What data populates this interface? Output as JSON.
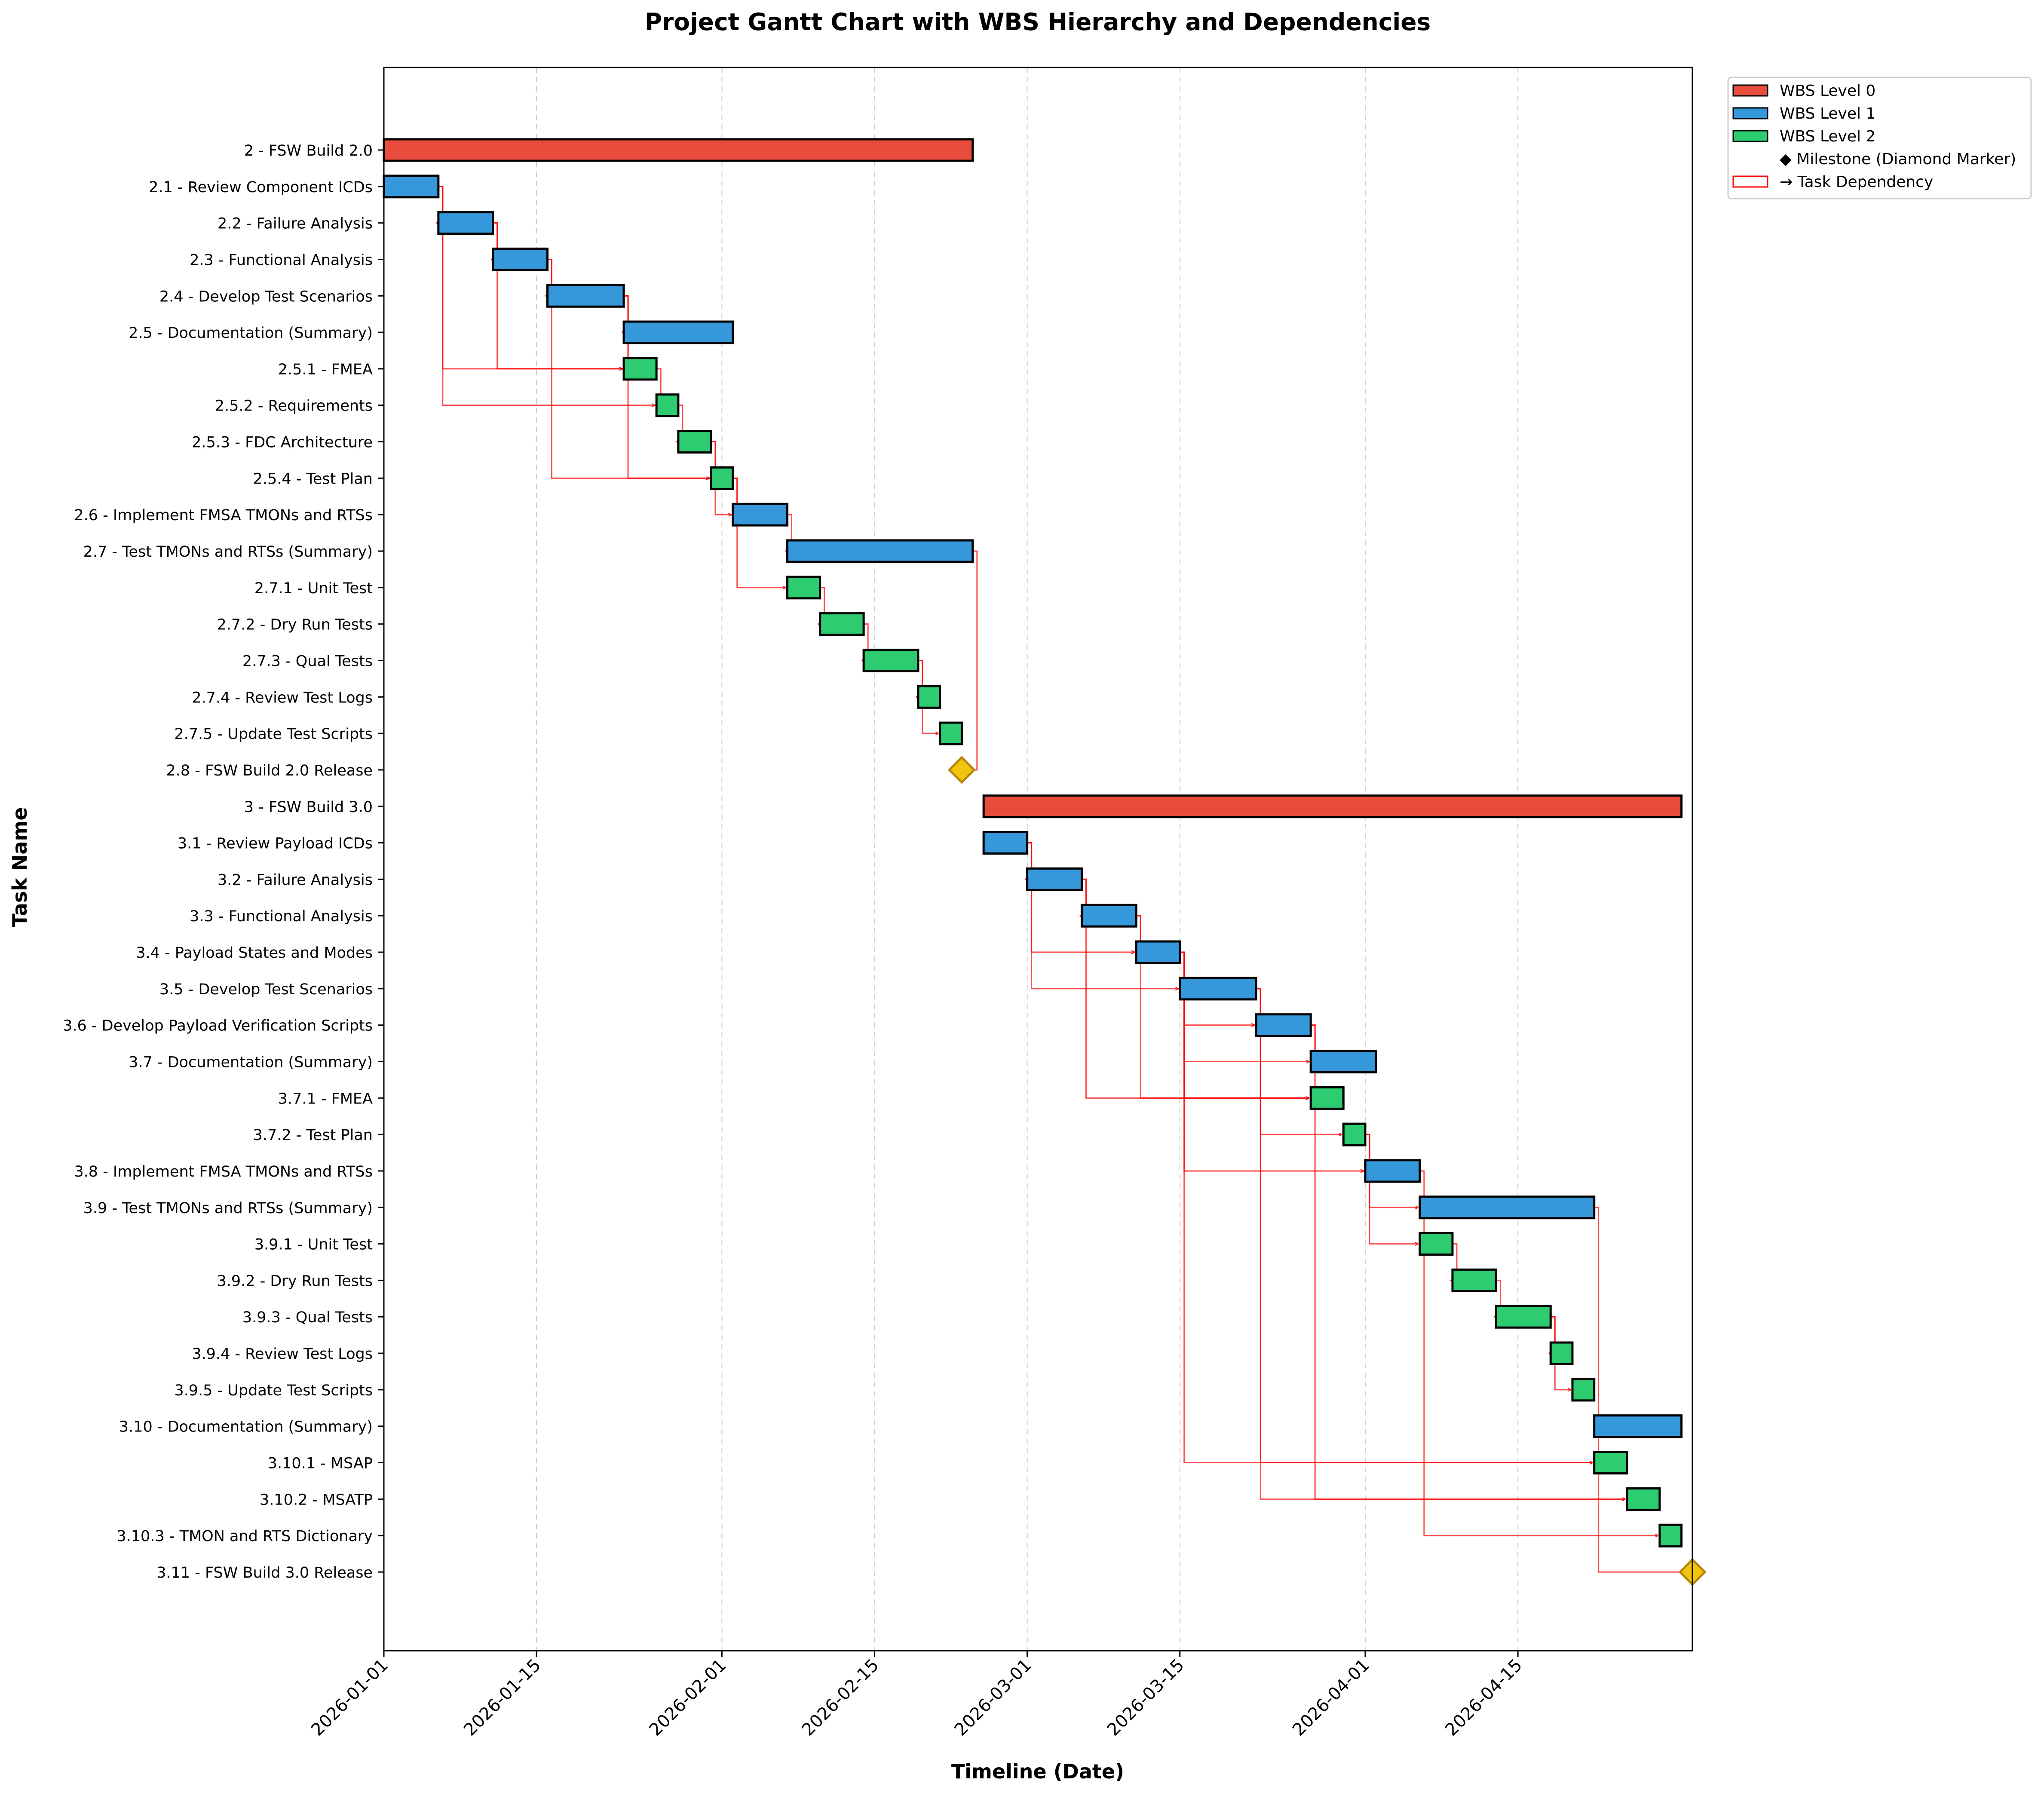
{
  "chart_data": {
    "type": "gantt",
    "title": "Project Gantt Chart with WBS Hierarchy and Dependencies",
    "xlabel": "Timeline (Date)",
    "ylabel": "Task Name",
    "x_range": [
      "2026-01-01",
      "2026-05-01"
    ],
    "x_ticks": [
      "2026-01-01",
      "2026-01-15",
      "2026-02-01",
      "2026-02-15",
      "2026-03-01",
      "2026-03-15",
      "2026-04-01",
      "2026-04-15"
    ],
    "grid": "vertical dashed",
    "legend_position": "outside top-right",
    "legend": [
      {
        "label": "WBS Level 0",
        "kind": "bar",
        "color": "#e74c3c"
      },
      {
        "label": "WBS Level 1",
        "kind": "bar",
        "color": "#3498db"
      },
      {
        "label": "WBS Level 2",
        "kind": "bar",
        "color": "#2ecc71"
      },
      {
        "label": "◆ Milestone (Diamond Marker)",
        "kind": "none",
        "color": ""
      },
      {
        "label": "→ Task Dependency",
        "kind": "outline",
        "color": "#ff0000"
      }
    ],
    "colors": {
      "level0": "#e74c3c",
      "level1": "#3498db",
      "level2": "#2ecc71",
      "milestone": "#f1c40f",
      "milestone_edge": "#b8860b",
      "dependency": "#ff0000"
    },
    "tasks": [
      {
        "id": "2",
        "name": "2 - FSW Build 2.0",
        "level": 0,
        "start": "2026-01-01",
        "end": "2026-02-23"
      },
      {
        "id": "2.1",
        "name": "2.1 - Review Component ICDs",
        "level": 1,
        "start": "2026-01-01",
        "end": "2026-01-05"
      },
      {
        "id": "2.2",
        "name": "2.2 - Failure Analysis",
        "level": 1,
        "start": "2026-01-06",
        "end": "2026-01-10",
        "deps": [
          "2.1"
        ]
      },
      {
        "id": "2.3",
        "name": "2.3 - Functional Analysis",
        "level": 1,
        "start": "2026-01-11",
        "end": "2026-01-15",
        "deps": [
          "2.2"
        ]
      },
      {
        "id": "2.4",
        "name": "2.4 - Develop Test Scenarios",
        "level": 1,
        "start": "2026-01-16",
        "end": "2026-01-22",
        "deps": [
          "2.3"
        ]
      },
      {
        "id": "2.5",
        "name": "2.5 - Documentation (Summary)",
        "level": 1,
        "start": "2026-01-23",
        "end": "2026-02-01",
        "deps": [
          "2.4"
        ]
      },
      {
        "id": "2.5.1",
        "name": "2.5.1 - FMEA",
        "level": 2,
        "start": "2026-01-23",
        "end": "2026-01-25",
        "deps": [
          "2.1",
          "2.2",
          "2.4"
        ]
      },
      {
        "id": "2.5.2",
        "name": "2.5.2 - Requirements",
        "level": 2,
        "start": "2026-01-26",
        "end": "2026-01-27",
        "deps": [
          "2.1",
          "2.5.1"
        ]
      },
      {
        "id": "2.5.3",
        "name": "2.5.3 - FDC Architecture",
        "level": 2,
        "start": "2026-01-28",
        "end": "2026-01-30",
        "deps": [
          "2.5.2"
        ]
      },
      {
        "id": "2.5.4",
        "name": "2.5.4 - Test Plan",
        "level": 2,
        "start": "2026-01-31",
        "end": "2026-02-01",
        "deps": [
          "2.3",
          "2.4",
          "2.5.3"
        ]
      },
      {
        "id": "2.6",
        "name": "2.6 - Implement FMSA TMONs and RTSs",
        "level": 1,
        "start": "2026-02-02",
        "end": "2026-02-06",
        "deps": [
          "2.5.3",
          "2.5.4"
        ]
      },
      {
        "id": "2.7",
        "name": "2.7 - Test TMONs and RTSs (Summary)",
        "level": 1,
        "start": "2026-02-07",
        "end": "2026-02-23",
        "deps": [
          "2.6"
        ]
      },
      {
        "id": "2.7.1",
        "name": "2.7.1 - Unit Test",
        "level": 2,
        "start": "2026-02-07",
        "end": "2026-02-09",
        "deps": [
          "2.5.4"
        ]
      },
      {
        "id": "2.7.2",
        "name": "2.7.2 - Dry Run Tests",
        "level": 2,
        "start": "2026-02-10",
        "end": "2026-02-13",
        "deps": [
          "2.7.1"
        ]
      },
      {
        "id": "2.7.3",
        "name": "2.7.3 - Qual Tests",
        "level": 2,
        "start": "2026-02-14",
        "end": "2026-02-18",
        "deps": [
          "2.7.2"
        ]
      },
      {
        "id": "2.7.4",
        "name": "2.7.4 - Review Test Logs",
        "level": 2,
        "start": "2026-02-19",
        "end": "2026-02-20",
        "deps": [
          "2.7.3"
        ]
      },
      {
        "id": "2.7.5",
        "name": "2.7.5 - Update Test Scripts",
        "level": 2,
        "start": "2026-02-21",
        "end": "2026-02-22",
        "deps": [
          "2.7.3"
        ]
      },
      {
        "id": "2.8",
        "name": "2.8 - FSW Build 2.0 Release",
        "level": 1,
        "milestone": true,
        "date": "2026-02-23",
        "deps": [
          "2.7"
        ]
      },
      {
        "id": "3",
        "name": "3 - FSW Build 3.0",
        "level": 0,
        "start": "2026-02-25",
        "end": "2026-04-29"
      },
      {
        "id": "3.1",
        "name": "3.1 - Review Payload ICDs",
        "level": 1,
        "start": "2026-02-25",
        "end": "2026-02-28"
      },
      {
        "id": "3.2",
        "name": "3.2 - Failure Analysis",
        "level": 1,
        "start": "2026-03-01",
        "end": "2026-03-05",
        "deps": [
          "3.1"
        ]
      },
      {
        "id": "3.3",
        "name": "3.3 - Functional Analysis",
        "level": 1,
        "start": "2026-03-06",
        "end": "2026-03-10",
        "deps": [
          "3.2"
        ]
      },
      {
        "id": "3.4",
        "name": "3.4 - Payload States and Modes",
        "level": 1,
        "start": "2026-03-11",
        "end": "2026-03-14",
        "deps": [
          "3.1",
          "3.3"
        ]
      },
      {
        "id": "3.5",
        "name": "3.5 - Develop Test Scenarios",
        "level": 1,
        "start": "2026-03-15",
        "end": "2026-03-21",
        "deps": [
          "3.1",
          "3.4"
        ]
      },
      {
        "id": "3.6",
        "name": "3.6 - Develop Payload Verification Scripts",
        "level": 1,
        "start": "2026-03-22",
        "end": "2026-03-26",
        "deps": [
          "3.4",
          "3.5"
        ]
      },
      {
        "id": "3.7",
        "name": "3.7 - Documentation (Summary)",
        "level": 1,
        "start": "2026-03-27",
        "end": "2026-04-01",
        "deps": [
          "3.4",
          "3.6"
        ]
      },
      {
        "id": "3.7.1",
        "name": "3.7.1 - FMEA",
        "level": 2,
        "start": "2026-03-27",
        "end": "2026-03-29",
        "deps": [
          "3.2",
          "3.3",
          "3.4"
        ]
      },
      {
        "id": "3.7.2",
        "name": "3.7.2 - Test Plan",
        "level": 2,
        "start": "2026-03-30",
        "end": "2026-03-31",
        "deps": [
          "3.5"
        ]
      },
      {
        "id": "3.8",
        "name": "3.8 - Implement FMSA TMONs and RTSs",
        "level": 1,
        "start": "2026-04-01",
        "end": "2026-04-05",
        "deps": [
          "3.4",
          "3.7.2"
        ]
      },
      {
        "id": "3.9",
        "name": "3.9 - Test TMONs and RTSs (Summary)",
        "level": 1,
        "start": "2026-04-06",
        "end": "2026-04-21",
        "deps": [
          "3.7.2"
        ]
      },
      {
        "id": "3.9.1",
        "name": "3.9.1 - Unit Test",
        "level": 2,
        "start": "2026-04-06",
        "end": "2026-04-08",
        "deps": [
          "3.7.2"
        ]
      },
      {
        "id": "3.9.2",
        "name": "3.9.2 - Dry Run Tests",
        "level": 2,
        "start": "2026-04-09",
        "end": "2026-04-12",
        "deps": [
          "3.9.1"
        ]
      },
      {
        "id": "3.9.3",
        "name": "3.9.3 - Qual Tests",
        "level": 2,
        "start": "2026-04-13",
        "end": "2026-04-17",
        "deps": [
          "3.9.2"
        ]
      },
      {
        "id": "3.9.4",
        "name": "3.9.4 - Review Test Logs",
        "level": 2,
        "start": "2026-04-18",
        "end": "2026-04-19",
        "deps": [
          "3.9.3"
        ]
      },
      {
        "id": "3.9.5",
        "name": "3.9.5 - Update Test Scripts",
        "level": 2,
        "start": "2026-04-20",
        "end": "2026-04-21",
        "deps": [
          "3.9.3"
        ]
      },
      {
        "id": "3.10",
        "name": "3.10 - Documentation (Summary)",
        "level": 1,
        "start": "2026-04-22",
        "end": "2026-04-29",
        "deps": []
      },
      {
        "id": "3.10.1",
        "name": "3.10.1 - MSAP",
        "level": 2,
        "start": "2026-04-22",
        "end": "2026-04-24",
        "deps": [
          "3.4",
          "3.5"
        ]
      },
      {
        "id": "3.10.2",
        "name": "3.10.2 - MSATP",
        "level": 2,
        "start": "2026-04-25",
        "end": "2026-04-27",
        "deps": [
          "3.5",
          "3.6"
        ]
      },
      {
        "id": "3.10.3",
        "name": "3.10.3 - TMON and RTS Dictionary",
        "level": 2,
        "start": "2026-04-28",
        "end": "2026-04-29",
        "deps": [
          "3.8"
        ]
      },
      {
        "id": "3.11",
        "name": "3.11 - FSW Build 3.0 Release",
        "level": 1,
        "milestone": true,
        "date": "2026-05-01",
        "deps": [
          "3.9"
        ]
      }
    ]
  }
}
